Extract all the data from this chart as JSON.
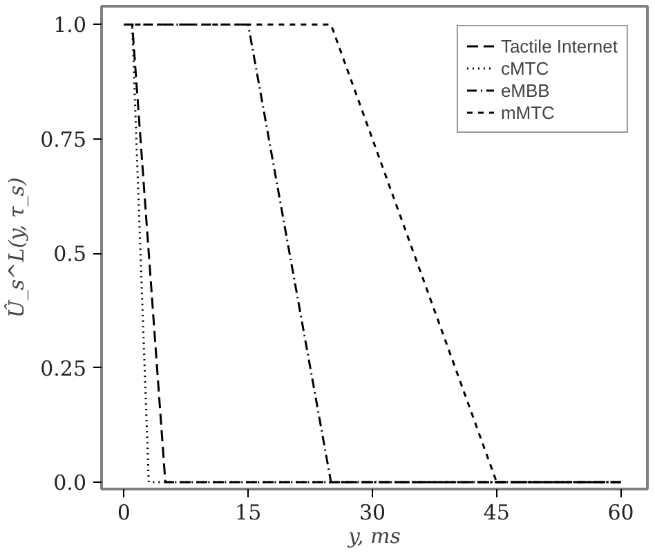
{
  "chart_data": {
    "type": "line",
    "xlabel": "y, ms",
    "ylabel": "Û_s^L(y, τ_s)",
    "xlim": [
      -2.7,
      63.2
    ],
    "ylim": [
      -0.015,
      1.04
    ],
    "xticks": [
      0,
      15,
      30,
      45,
      60
    ],
    "yticks": [
      {
        "value": 0,
        "label": "0.0"
      },
      0.25,
      {
        "value": 0.5,
        "label": "0.5"
      },
      0.75,
      {
        "value": 1,
        "label": "1.0"
      }
    ],
    "grid": false,
    "legend": "top right",
    "marker": "none",
    "series": [
      {
        "name": "Tactile Internet",
        "color": "#000000",
        "line_style": "dashed",
        "x": [
          0,
          1,
          5,
          60
        ],
        "values": [
          1,
          1,
          0,
          0
        ]
      },
      {
        "name": "cMTC",
        "color": "#000000",
        "line_style": "dotted",
        "x": [
          0,
          1,
          3,
          60
        ],
        "values": [
          1,
          1,
          0,
          0
        ]
      },
      {
        "name": "eMBB",
        "color": "#000000",
        "line_style": "dashdot",
        "x": [
          0,
          15,
          25,
          60
        ],
        "values": [
          1,
          1,
          0,
          0
        ]
      },
      {
        "name": "mMTC",
        "color": "#000000",
        "line_style": "shortdash",
        "x": [
          0,
          25,
          45,
          60
        ],
        "values": [
          1,
          1,
          0,
          0
        ]
      }
    ]
  }
}
